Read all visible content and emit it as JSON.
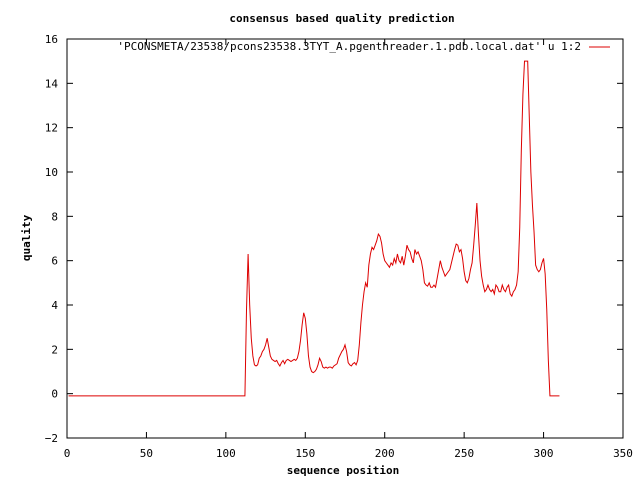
{
  "chart_data": {
    "type": "line",
    "title": "consensus based quality prediction",
    "xlabel": "sequence position",
    "ylabel": "quality",
    "xlim": [
      0,
      350
    ],
    "ylim": [
      -2,
      16
    ],
    "xticks": [
      0,
      50,
      100,
      150,
      200,
      250,
      300,
      350
    ],
    "yticks": [
      -2,
      0,
      2,
      4,
      6,
      8,
      10,
      12,
      14,
      16
    ],
    "grid": false,
    "legend": "top-right",
    "series": [
      {
        "name": "'PCONSMETA/23538/pcons23538.3TYT_A.pgenthreader.1.pdb.local.dat' u 1:2",
        "color": "#dd0000",
        "points": [
          [
            1,
            -0.1
          ],
          [
            112,
            -0.1
          ],
          [
            113,
            3.8
          ],
          [
            114,
            6.3
          ],
          [
            115,
            4.0
          ],
          [
            116,
            2.5
          ],
          [
            117,
            1.7
          ],
          [
            118,
            1.3
          ],
          [
            119,
            1.25
          ],
          [
            120,
            1.3
          ],
          [
            121,
            1.6
          ],
          [
            122,
            1.7
          ],
          [
            123,
            1.9
          ],
          [
            124,
            2.0
          ],
          [
            125,
            2.2
          ],
          [
            126,
            2.5
          ],
          [
            127,
            2.1
          ],
          [
            128,
            1.7
          ],
          [
            129,
            1.55
          ],
          [
            130,
            1.5
          ],
          [
            131,
            1.45
          ],
          [
            132,
            1.5
          ],
          [
            133,
            1.35
          ],
          [
            134,
            1.25
          ],
          [
            135,
            1.4
          ],
          [
            136,
            1.5
          ],
          [
            137,
            1.35
          ],
          [
            138,
            1.5
          ],
          [
            139,
            1.55
          ],
          [
            140,
            1.5
          ],
          [
            141,
            1.45
          ],
          [
            142,
            1.5
          ],
          [
            143,
            1.55
          ],
          [
            144,
            1.5
          ],
          [
            145,
            1.6
          ],
          [
            146,
            1.9
          ],
          [
            147,
            2.4
          ],
          [
            148,
            3.1
          ],
          [
            149,
            3.65
          ],
          [
            150,
            3.4
          ],
          [
            151,
            2.7
          ],
          [
            152,
            1.7
          ],
          [
            153,
            1.2
          ],
          [
            154,
            1.0
          ],
          [
            155,
            0.95
          ],
          [
            156,
            1.0
          ],
          [
            157,
            1.1
          ],
          [
            158,
            1.3
          ],
          [
            159,
            1.6
          ],
          [
            160,
            1.45
          ],
          [
            161,
            1.2
          ],
          [
            162,
            1.15
          ],
          [
            163,
            1.2
          ],
          [
            164,
            1.15
          ],
          [
            165,
            1.2
          ],
          [
            166,
            1.2
          ],
          [
            167,
            1.15
          ],
          [
            168,
            1.25
          ],
          [
            169,
            1.3
          ],
          [
            170,
            1.35
          ],
          [
            171,
            1.6
          ],
          [
            172,
            1.75
          ],
          [
            173,
            1.9
          ],
          [
            174,
            2.0
          ],
          [
            175,
            2.2
          ],
          [
            176,
            1.9
          ],
          [
            177,
            1.4
          ],
          [
            178,
            1.3
          ],
          [
            179,
            1.25
          ],
          [
            180,
            1.35
          ],
          [
            181,
            1.4
          ],
          [
            182,
            1.3
          ],
          [
            183,
            1.5
          ],
          [
            184,
            2.2
          ],
          [
            185,
            3.2
          ],
          [
            186,
            4.0
          ],
          [
            187,
            4.6
          ],
          [
            188,
            5.0
          ],
          [
            189,
            4.8
          ],
          [
            190,
            5.8
          ],
          [
            191,
            6.3
          ],
          [
            192,
            6.6
          ],
          [
            193,
            6.5
          ],
          [
            194,
            6.7
          ],
          [
            195,
            6.9
          ],
          [
            196,
            7.2
          ],
          [
            197,
            7.1
          ],
          [
            198,
            6.8
          ],
          [
            199,
            6.3
          ],
          [
            200,
            6.0
          ],
          [
            201,
            5.9
          ],
          [
            202,
            5.8
          ],
          [
            203,
            5.7
          ],
          [
            204,
            5.9
          ],
          [
            205,
            5.8
          ],
          [
            206,
            6.1
          ],
          [
            207,
            5.9
          ],
          [
            208,
            6.3
          ],
          [
            209,
            6.0
          ],
          [
            210,
            5.9
          ],
          [
            211,
            6.2
          ],
          [
            212,
            5.8
          ],
          [
            213,
            6.2
          ],
          [
            214,
            6.7
          ],
          [
            215,
            6.5
          ],
          [
            216,
            6.4
          ],
          [
            217,
            6.1
          ],
          [
            218,
            5.9
          ],
          [
            219,
            6.5
          ],
          [
            220,
            6.3
          ],
          [
            221,
            6.4
          ],
          [
            222,
            6.2
          ],
          [
            223,
            6.0
          ],
          [
            224,
            5.6
          ],
          [
            225,
            5.0
          ],
          [
            226,
            4.9
          ],
          [
            227,
            4.85
          ],
          [
            228,
            5.0
          ],
          [
            229,
            4.8
          ],
          [
            230,
            4.8
          ],
          [
            231,
            4.9
          ],
          [
            232,
            4.8
          ],
          [
            233,
            5.2
          ],
          [
            234,
            5.6
          ],
          [
            235,
            6.0
          ],
          [
            236,
            5.7
          ],
          [
            237,
            5.5
          ],
          [
            238,
            5.3
          ],
          [
            239,
            5.4
          ],
          [
            240,
            5.5
          ],
          [
            241,
            5.6
          ],
          [
            242,
            5.9
          ],
          [
            243,
            6.2
          ],
          [
            244,
            6.5
          ],
          [
            245,
            6.75
          ],
          [
            246,
            6.7
          ],
          [
            247,
            6.4
          ],
          [
            248,
            6.5
          ],
          [
            249,
            6.1
          ],
          [
            250,
            5.5
          ],
          [
            251,
            5.1
          ],
          [
            252,
            5.0
          ],
          [
            253,
            5.2
          ],
          [
            254,
            5.6
          ],
          [
            255,
            5.9
          ],
          [
            256,
            6.7
          ],
          [
            257,
            7.6
          ],
          [
            258,
            8.6
          ],
          [
            259,
            7.2
          ],
          [
            260,
            6.0
          ],
          [
            261,
            5.3
          ],
          [
            262,
            4.9
          ],
          [
            263,
            4.6
          ],
          [
            264,
            4.7
          ],
          [
            265,
            4.9
          ],
          [
            266,
            4.7
          ],
          [
            267,
            4.6
          ],
          [
            268,
            4.7
          ],
          [
            269,
            4.5
          ],
          [
            270,
            4.9
          ],
          [
            271,
            4.8
          ],
          [
            272,
            4.6
          ],
          [
            273,
            4.6
          ],
          [
            274,
            4.9
          ],
          [
            275,
            4.7
          ],
          [
            276,
            4.6
          ],
          [
            277,
            4.8
          ],
          [
            278,
            4.9
          ],
          [
            279,
            4.5
          ],
          [
            280,
            4.4
          ],
          [
            281,
            4.6
          ],
          [
            282,
            4.7
          ],
          [
            283,
            4.9
          ],
          [
            284,
            5.5
          ],
          [
            285,
            7.5
          ],
          [
            286,
            11.0
          ],
          [
            287,
            13.5
          ],
          [
            288,
            15.0
          ],
          [
            289,
            15.0
          ],
          [
            290,
            15.0
          ],
          [
            291,
            12.5
          ],
          [
            292,
            10.0
          ],
          [
            293,
            8.5
          ],
          [
            294,
            7.3
          ],
          [
            295,
            5.8
          ],
          [
            296,
            5.6
          ],
          [
            297,
            5.5
          ],
          [
            298,
            5.6
          ],
          [
            299,
            5.9
          ],
          [
            300,
            6.1
          ],
          [
            301,
            5.4
          ],
          [
            302,
            3.8
          ],
          [
            303,
            1.5
          ],
          [
            304,
            -0.1
          ],
          [
            310,
            -0.1
          ]
        ]
      }
    ]
  }
}
